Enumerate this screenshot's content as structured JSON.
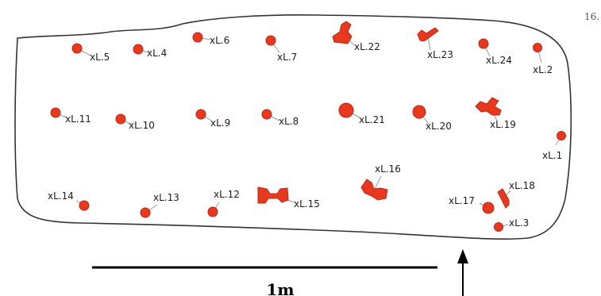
{
  "page_number": "16.",
  "scale_label": "1m",
  "colors": {
    "feature": "#e8391f",
    "feature_stroke": "#b8281a",
    "outline": "#333333"
  },
  "icons": [
    "north-arrow-icon"
  ],
  "features": [
    {
      "id": "xL.1",
      "label": "xL.1",
      "shape": "dot"
    },
    {
      "id": "xL.2",
      "label": "xL.2",
      "shape": "dot"
    },
    {
      "id": "xL.3",
      "label": "xL.3",
      "shape": "dot"
    },
    {
      "id": "xL.4",
      "label": "xL.4",
      "shape": "dot"
    },
    {
      "id": "xL.5",
      "label": "xL.5",
      "shape": "dot"
    },
    {
      "id": "xL.6",
      "label": "xL.6",
      "shape": "dot"
    },
    {
      "id": "xL.7",
      "label": "xL.7",
      "shape": "dot"
    },
    {
      "id": "xL.8",
      "label": "xL.8",
      "shape": "dot"
    },
    {
      "id": "xL.9",
      "label": "xL.9",
      "shape": "dot"
    },
    {
      "id": "xL.10",
      "label": "xL.10",
      "shape": "dot"
    },
    {
      "id": "xL.11",
      "label": "xL.11",
      "shape": "dot"
    },
    {
      "id": "xL.12",
      "label": "xL.12",
      "shape": "dot"
    },
    {
      "id": "xL.13",
      "label": "xL.13",
      "shape": "dot"
    },
    {
      "id": "xL.14",
      "label": "xL.14",
      "shape": "dot"
    },
    {
      "id": "xL.15",
      "label": "xL.15",
      "shape": "ibeam"
    },
    {
      "id": "xL.16",
      "label": "xL.16",
      "shape": "blob"
    },
    {
      "id": "xL.17",
      "label": "xL.17",
      "shape": "dot"
    },
    {
      "id": "xL.18",
      "label": "xL.18",
      "shape": "bar"
    },
    {
      "id": "xL.19",
      "label": "xL.19",
      "shape": "blob"
    },
    {
      "id": "xL.20",
      "label": "xL.20",
      "shape": "dot"
    },
    {
      "id": "xL.21",
      "label": "xL.21",
      "shape": "dot"
    },
    {
      "id": "xL.22",
      "label": "xL.22",
      "shape": "blob"
    },
    {
      "id": "xL.23",
      "label": "xL.23",
      "shape": "bar"
    },
    {
      "id": "xL.24",
      "label": "xL.24",
      "shape": "dot"
    }
  ]
}
